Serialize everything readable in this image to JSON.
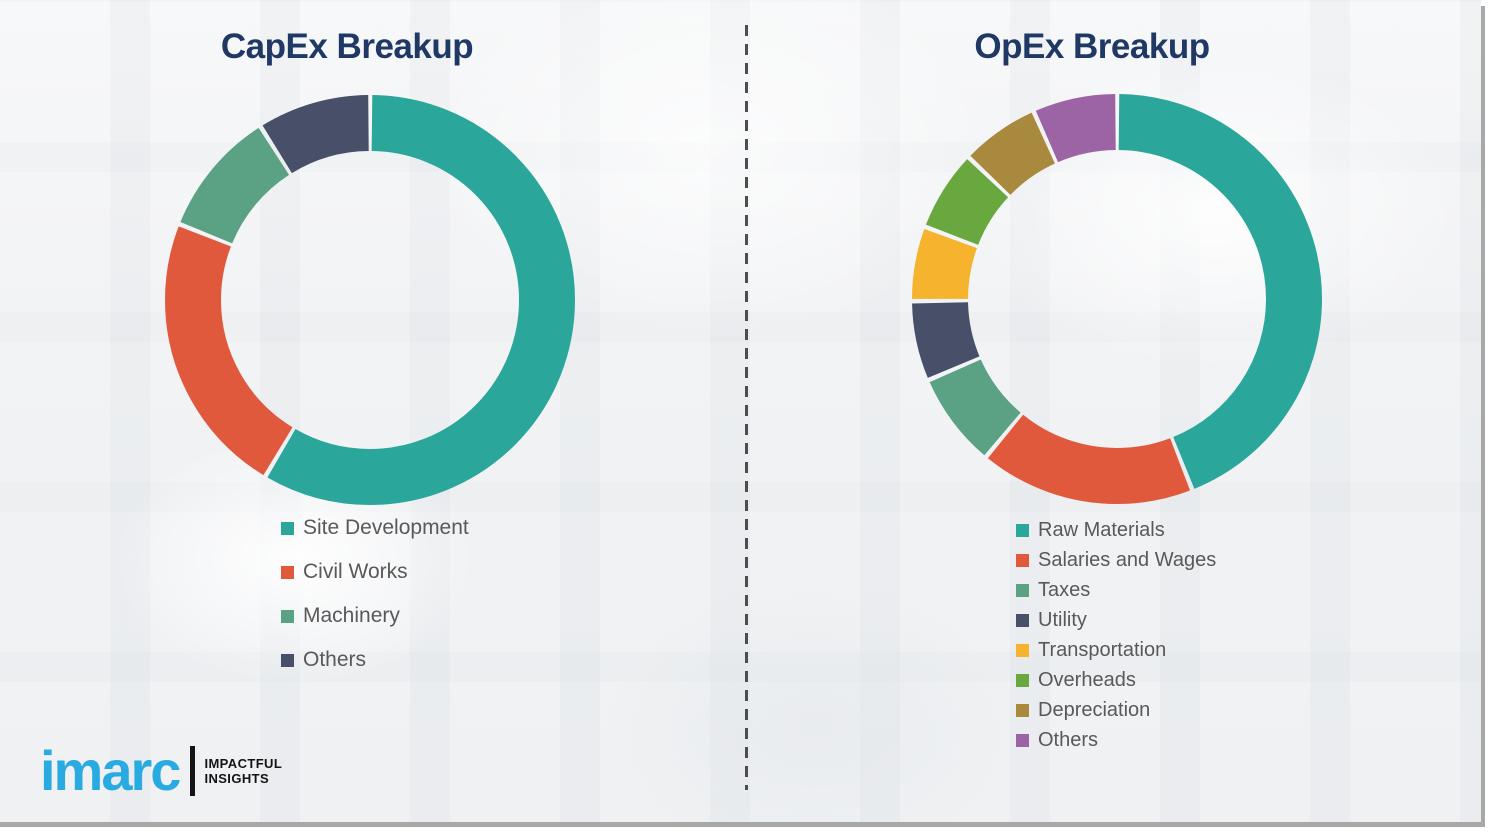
{
  "chart_data": [
    {
      "type": "pie",
      "subtype": "donut",
      "title": "CapEx Breakup",
      "labels": [
        "Site Development",
        "Civil Works",
        "Machinery",
        "Others"
      ],
      "values": [
        58.5,
        22.5,
        10,
        9
      ],
      "values_note": "percent share estimated from arc angles; no data labels shown in image",
      "colors": [
        "#2BA69A",
        "#E0593D",
        "#5BA183",
        "#485069"
      ],
      "legend_position": "below-left",
      "data_labels_shown": false,
      "start_angle": "12 o'clock, clockwise"
    },
    {
      "type": "pie",
      "subtype": "donut",
      "title": "OpEx Breakup",
      "labels": [
        "Raw Materials",
        "Salaries and Wages",
        "Taxes",
        "Utility",
        "Transportation",
        "Overheads",
        "Depreciation",
        "Others"
      ],
      "values": [
        44,
        17,
        7.5,
        6.3,
        5.9,
        6.4,
        6.2,
        6.7
      ],
      "values_note": "percent share estimated from arc angles; no data labels shown in image",
      "colors": [
        "#2BA69A",
        "#E0593D",
        "#5BA183",
        "#485069",
        "#F5B32E",
        "#69A83E",
        "#A8893E",
        "#9D64A5"
      ],
      "legend_position": "below-left",
      "data_labels_shown": false,
      "start_angle": "12 o'clock, clockwise"
    }
  ],
  "logo": {
    "brand": "imarc",
    "tagline_line1": "IMPACTFUL",
    "tagline_line2": "INSIGHTS",
    "brand_color": "#29ABE2"
  },
  "styles": {
    "title_color": "#1F3864",
    "legend_text_color": "#595959",
    "background_color": "#F2F3F5",
    "divider_color": "#4D4D4D",
    "frame_border_color": "#A8A8A8"
  }
}
